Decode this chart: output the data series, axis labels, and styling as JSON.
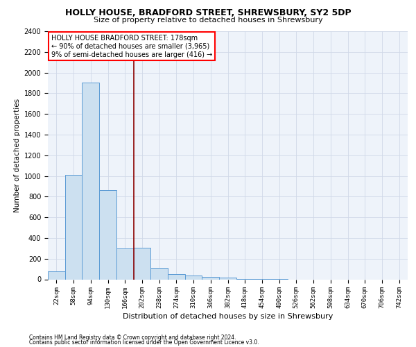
{
  "title1": "HOLLY HOUSE, BRADFORD STREET, SHREWSBURY, SY2 5DP",
  "title2": "Size of property relative to detached houses in Shrewsbury",
  "xlabel": "Distribution of detached houses by size in Shrewsbury",
  "ylabel": "Number of detached properties",
  "bin_labels": [
    "22sqm",
    "58sqm",
    "94sqm",
    "130sqm",
    "166sqm",
    "202sqm",
    "238sqm",
    "274sqm",
    "310sqm",
    "346sqm",
    "382sqm",
    "418sqm",
    "454sqm",
    "490sqm",
    "526sqm",
    "562sqm",
    "598sqm",
    "634sqm",
    "670sqm",
    "706sqm",
    "742sqm"
  ],
  "bar_heights": [
    80,
    1010,
    1900,
    860,
    300,
    305,
    110,
    50,
    40,
    25,
    15,
    5,
    2,
    1,
    0,
    0,
    0,
    0,
    0,
    0,
    0
  ],
  "bar_color": "#cce0f0",
  "bar_edge_color": "#5b9bd5",
  "grid_color": "#d0d8e8",
  "bg_color": "#eef3fa",
  "vline_x": 4.5,
  "vline_color": "#8b0000",
  "ylim_max": 2400,
  "yticks": [
    0,
    200,
    400,
    600,
    800,
    1000,
    1200,
    1400,
    1600,
    1800,
    2000,
    2200,
    2400
  ],
  "annotation_title": "HOLLY HOUSE BRADFORD STREET: 178sqm",
  "annotation_line1": "← 90% of detached houses are smaller (3,965)",
  "annotation_line2": "9% of semi-detached houses are larger (416) →",
  "footnote1": "Contains HM Land Registry data © Crown copyright and database right 2024.",
  "footnote2": "Contains public sector information licensed under the Open Government Licence v3.0.",
  "title1_fontsize": 9,
  "title2_fontsize": 8,
  "ylabel_fontsize": 7.5,
  "xlabel_fontsize": 8,
  "ytick_fontsize": 7,
  "xtick_fontsize": 6.5,
  "annot_fontsize": 7,
  "footnote_fontsize": 5.5
}
